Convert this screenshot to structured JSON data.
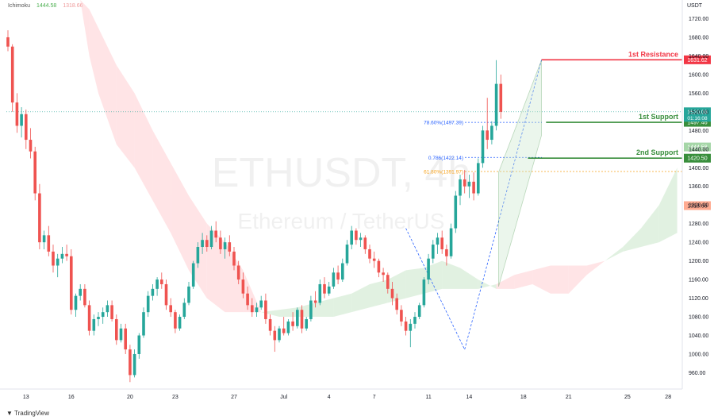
{
  "indicator": {
    "name": "Ichimoku",
    "v1": "1444.58",
    "v2": "1318.66"
  },
  "watermark": {
    "symbol": "ETHUSDT, 4h",
    "desc": "Ethereum / TetherUS"
  },
  "branding": "TradingView",
  "axis_unit": "USDT",
  "colors": {
    "up": "#26a69a",
    "down": "#ef5350",
    "resistance": "#f23645",
    "support": "#388e3c",
    "fib_blue": "#2962ff",
    "fib_orange": "#f7a21b",
    "cloud_green": "#c8e6c9",
    "cloud_red": "#ffcdd2"
  },
  "chart_data": {
    "type": "candlestick",
    "title": "ETHUSDT, 4h",
    "y_ticks": [
      960,
      1000,
      1040,
      1080,
      1120,
      1160,
      1200,
      1240,
      1280,
      1320,
      1360,
      1400,
      1440,
      1480,
      1520,
      1560,
      1600,
      1640,
      1680,
      1720
    ],
    "ylim": [
      925,
      1760
    ],
    "x_ticks": [
      "13",
      "16",
      "20",
      "23",
      "27",
      "Jul",
      "4",
      "7",
      "11",
      "14",
      "18",
      "21",
      "25",
      "28"
    ],
    "levels": [
      {
        "name": "1st Resistance",
        "price": 1631.62,
        "label": "1631.62",
        "color": "#f23645"
      },
      {
        "name": "1st Support",
        "price": 1497.46,
        "label": "1497.46",
        "color": "#388e3c"
      },
      {
        "name": "2nd Support",
        "price": 1420.5,
        "label": "1420.50",
        "color": "#388e3c"
      }
    ],
    "fib_labels": [
      {
        "text": "78.60%(1497.39)",
        "price": 1497.39,
        "color": "#2962ff"
      },
      {
        "text": "0.786(1422.14)",
        "price": 1422.14,
        "color": "#2962ff"
      },
      {
        "text": "61.80%(1391.97)",
        "price": 1391.97,
        "color": "#f7a21b"
      }
    ],
    "price_tags": [
      {
        "price": 1520.08,
        "label": "1520.08",
        "sub": "01:16:08",
        "color": "#26a69a"
      },
      {
        "price": 1444.58,
        "label": "1444.58",
        "color": "#a5d6a7"
      },
      {
        "price": 1318.66,
        "label": "1318.66",
        "color": "#ffab91"
      }
    ],
    "candles": [
      [
        1680,
        1695,
        1650,
        1660
      ],
      [
        1660,
        1665,
        1520,
        1540
      ],
      [
        1540,
        1560,
        1475,
        1490
      ],
      [
        1490,
        1530,
        1465,
        1515
      ],
      [
        1515,
        1525,
        1440,
        1460
      ],
      [
        1460,
        1485,
        1420,
        1435
      ],
      [
        1435,
        1445,
        1330,
        1345
      ],
      [
        1345,
        1365,
        1225,
        1240
      ],
      [
        1240,
        1265,
        1225,
        1255
      ],
      [
        1255,
        1275,
        1210,
        1220
      ],
      [
        1220,
        1235,
        1175,
        1190
      ],
      [
        1190,
        1215,
        1165,
        1205
      ],
      [
        1205,
        1230,
        1195,
        1215
      ],
      [
        1215,
        1235,
        1200,
        1210
      ],
      [
        1210,
        1225,
        1085,
        1095
      ],
      [
        1095,
        1130,
        1080,
        1125
      ],
      [
        1125,
        1150,
        1115,
        1140
      ],
      [
        1140,
        1150,
        1100,
        1105
      ],
      [
        1105,
        1115,
        1040,
        1050
      ],
      [
        1050,
        1085,
        1040,
        1075
      ],
      [
        1075,
        1090,
        1060,
        1080
      ],
      [
        1080,
        1100,
        1065,
        1090
      ],
      [
        1090,
        1115,
        1080,
        1105
      ],
      [
        1105,
        1115,
        1070,
        1075
      ],
      [
        1075,
        1085,
        1020,
        1030
      ],
      [
        1030,
        1065,
        1025,
        1055
      ],
      [
        1055,
        1065,
        1000,
        1010
      ],
      [
        1010,
        1020,
        940,
        955
      ],
      [
        955,
        1010,
        950,
        1000
      ],
      [
        1000,
        1045,
        990,
        1040
      ],
      [
        1040,
        1100,
        1035,
        1090
      ],
      [
        1090,
        1135,
        1080,
        1125
      ],
      [
        1125,
        1150,
        1115,
        1140
      ],
      [
        1140,
        1165,
        1125,
        1160
      ],
      [
        1160,
        1175,
        1140,
        1150
      ],
      [
        1150,
        1160,
        1095,
        1105
      ],
      [
        1105,
        1120,
        1080,
        1090
      ],
      [
        1090,
        1095,
        1045,
        1055
      ],
      [
        1055,
        1085,
        1050,
        1080
      ],
      [
        1080,
        1120,
        1075,
        1110
      ],
      [
        1110,
        1155,
        1105,
        1145
      ],
      [
        1145,
        1200,
        1140,
        1195
      ],
      [
        1195,
        1240,
        1185,
        1230
      ],
      [
        1230,
        1260,
        1215,
        1245
      ],
      [
        1245,
        1255,
        1220,
        1230
      ],
      [
        1230,
        1275,
        1225,
        1265
      ],
      [
        1265,
        1285,
        1240,
        1250
      ],
      [
        1250,
        1265,
        1215,
        1225
      ],
      [
        1225,
        1250,
        1205,
        1240
      ],
      [
        1240,
        1255,
        1210,
        1220
      ],
      [
        1220,
        1230,
        1180,
        1190
      ],
      [
        1190,
        1200,
        1150,
        1160
      ],
      [
        1160,
        1175,
        1120,
        1130
      ],
      [
        1130,
        1145,
        1095,
        1105
      ],
      [
        1105,
        1120,
        1080,
        1090
      ],
      [
        1090,
        1110,
        1080,
        1100
      ],
      [
        1100,
        1125,
        1095,
        1115
      ],
      [
        1115,
        1130,
        1065,
        1075
      ],
      [
        1075,
        1085,
        1040,
        1050
      ],
      [
        1050,
        1060,
        1005,
        1030
      ],
      [
        1030,
        1060,
        1025,
        1055
      ],
      [
        1055,
        1080,
        1040,
        1045
      ],
      [
        1045,
        1075,
        1040,
        1070
      ],
      [
        1070,
        1090,
        1050,
        1060
      ],
      [
        1060,
        1100,
        1055,
        1095
      ],
      [
        1095,
        1105,
        1045,
        1055
      ],
      [
        1055,
        1080,
        1050,
        1075
      ],
      [
        1075,
        1125,
        1070,
        1115
      ],
      [
        1115,
        1135,
        1100,
        1110
      ],
      [
        1110,
        1160,
        1105,
        1150
      ],
      [
        1150,
        1165,
        1120,
        1130
      ],
      [
        1130,
        1155,
        1125,
        1145
      ],
      [
        1145,
        1185,
        1140,
        1175
      ],
      [
        1175,
        1190,
        1150,
        1160
      ],
      [
        1160,
        1205,
        1155,
        1195
      ],
      [
        1195,
        1245,
        1190,
        1235
      ],
      [
        1235,
        1275,
        1225,
        1265
      ],
      [
        1265,
        1270,
        1235,
        1245
      ],
      [
        1245,
        1260,
        1230,
        1250
      ],
      [
        1250,
        1255,
        1215,
        1225
      ],
      [
        1225,
        1235,
        1195,
        1205
      ],
      [
        1205,
        1220,
        1185,
        1200
      ],
      [
        1200,
        1205,
        1165,
        1175
      ],
      [
        1175,
        1185,
        1155,
        1170
      ],
      [
        1170,
        1175,
        1130,
        1140
      ],
      [
        1140,
        1155,
        1105,
        1120
      ],
      [
        1120,
        1130,
        1085,
        1095
      ],
      [
        1095,
        1105,
        1060,
        1070
      ],
      [
        1070,
        1080,
        1040,
        1050
      ],
      [
        1050,
        1075,
        1015,
        1065
      ],
      [
        1065,
        1090,
        1055,
        1080
      ],
      [
        1080,
        1110,
        1075,
        1105
      ],
      [
        1105,
        1165,
        1100,
        1160
      ],
      [
        1160,
        1215,
        1150,
        1205
      ],
      [
        1205,
        1245,
        1195,
        1235
      ],
      [
        1235,
        1260,
        1215,
        1250
      ],
      [
        1250,
        1265,
        1215,
        1225
      ],
      [
        1225,
        1235,
        1190,
        1210
      ],
      [
        1210,
        1280,
        1205,
        1270
      ],
      [
        1270,
        1350,
        1260,
        1340
      ],
      [
        1340,
        1385,
        1320,
        1375
      ],
      [
        1375,
        1395,
        1345,
        1360
      ],
      [
        1360,
        1385,
        1335,
        1370
      ],
      [
        1370,
        1390,
        1330,
        1345
      ],
      [
        1345,
        1420,
        1340,
        1410
      ],
      [
        1410,
        1490,
        1400,
        1480
      ],
      [
        1480,
        1550,
        1440,
        1460
      ],
      [
        1460,
        1500,
        1450,
        1490
      ],
      [
        1490,
        1631,
        1480,
        1580
      ],
      [
        1580,
        1600,
        1505,
        1520
      ]
    ],
    "senkou_a": [
      [
        16,
        1760
      ],
      [
        18,
        1640
      ],
      [
        20,
        1560
      ],
      [
        24,
        1450
      ],
      [
        28,
        1400
      ],
      [
        32,
        1330
      ],
      [
        36,
        1260
      ],
      [
        40,
        1180
      ],
      [
        44,
        1120
      ],
      [
        48,
        1090
      ],
      [
        52,
        1090
      ],
      [
        56,
        1090
      ],
      [
        60,
        1095
      ],
      [
        64,
        1100
      ],
      [
        68,
        1110
      ],
      [
        72,
        1120
      ],
      [
        76,
        1130
      ],
      [
        80,
        1150
      ],
      [
        84,
        1160
      ],
      [
        88,
        1180
      ],
      [
        92,
        1185
      ],
      [
        96,
        1200
      ],
      [
        100,
        1185
      ],
      [
        104,
        1160
      ],
      [
        108,
        1140
      ],
      [
        112,
        1140
      ],
      [
        116,
        1150
      ],
      [
        120,
        1130
      ],
      [
        124,
        1130
      ],
      [
        128,
        1170
      ],
      [
        132,
        1200
      ],
      [
        136,
        1230
      ],
      [
        140,
        1270
      ],
      [
        144,
        1320
      ],
      [
        148,
        1400
      ]
    ],
    "senkou_b": [
      [
        16,
        1760
      ],
      [
        18,
        1740
      ],
      [
        20,
        1700
      ],
      [
        24,
        1620
      ],
      [
        28,
        1560
      ],
      [
        32,
        1480
      ],
      [
        36,
        1410
      ],
      [
        40,
        1340
      ],
      [
        44,
        1280
      ],
      [
        48,
        1240
      ],
      [
        52,
        1180
      ],
      [
        56,
        1090
      ],
      [
        60,
        1080
      ],
      [
        64,
        1080
      ],
      [
        68,
        1080
      ],
      [
        72,
        1080
      ],
      [
        76,
        1090
      ],
      [
        80,
        1100
      ],
      [
        84,
        1110
      ],
      [
        88,
        1120
      ],
      [
        92,
        1130
      ],
      [
        96,
        1140
      ],
      [
        100,
        1140
      ],
      [
        104,
        1140
      ],
      [
        108,
        1150
      ],
      [
        112,
        1170
      ],
      [
        116,
        1180
      ],
      [
        120,
        1190
      ],
      [
        124,
        1190
      ],
      [
        128,
        1190
      ],
      [
        132,
        1200
      ],
      [
        136,
        1220
      ],
      [
        140,
        1230
      ],
      [
        144,
        1240
      ],
      [
        148,
        1260
      ]
    ]
  }
}
